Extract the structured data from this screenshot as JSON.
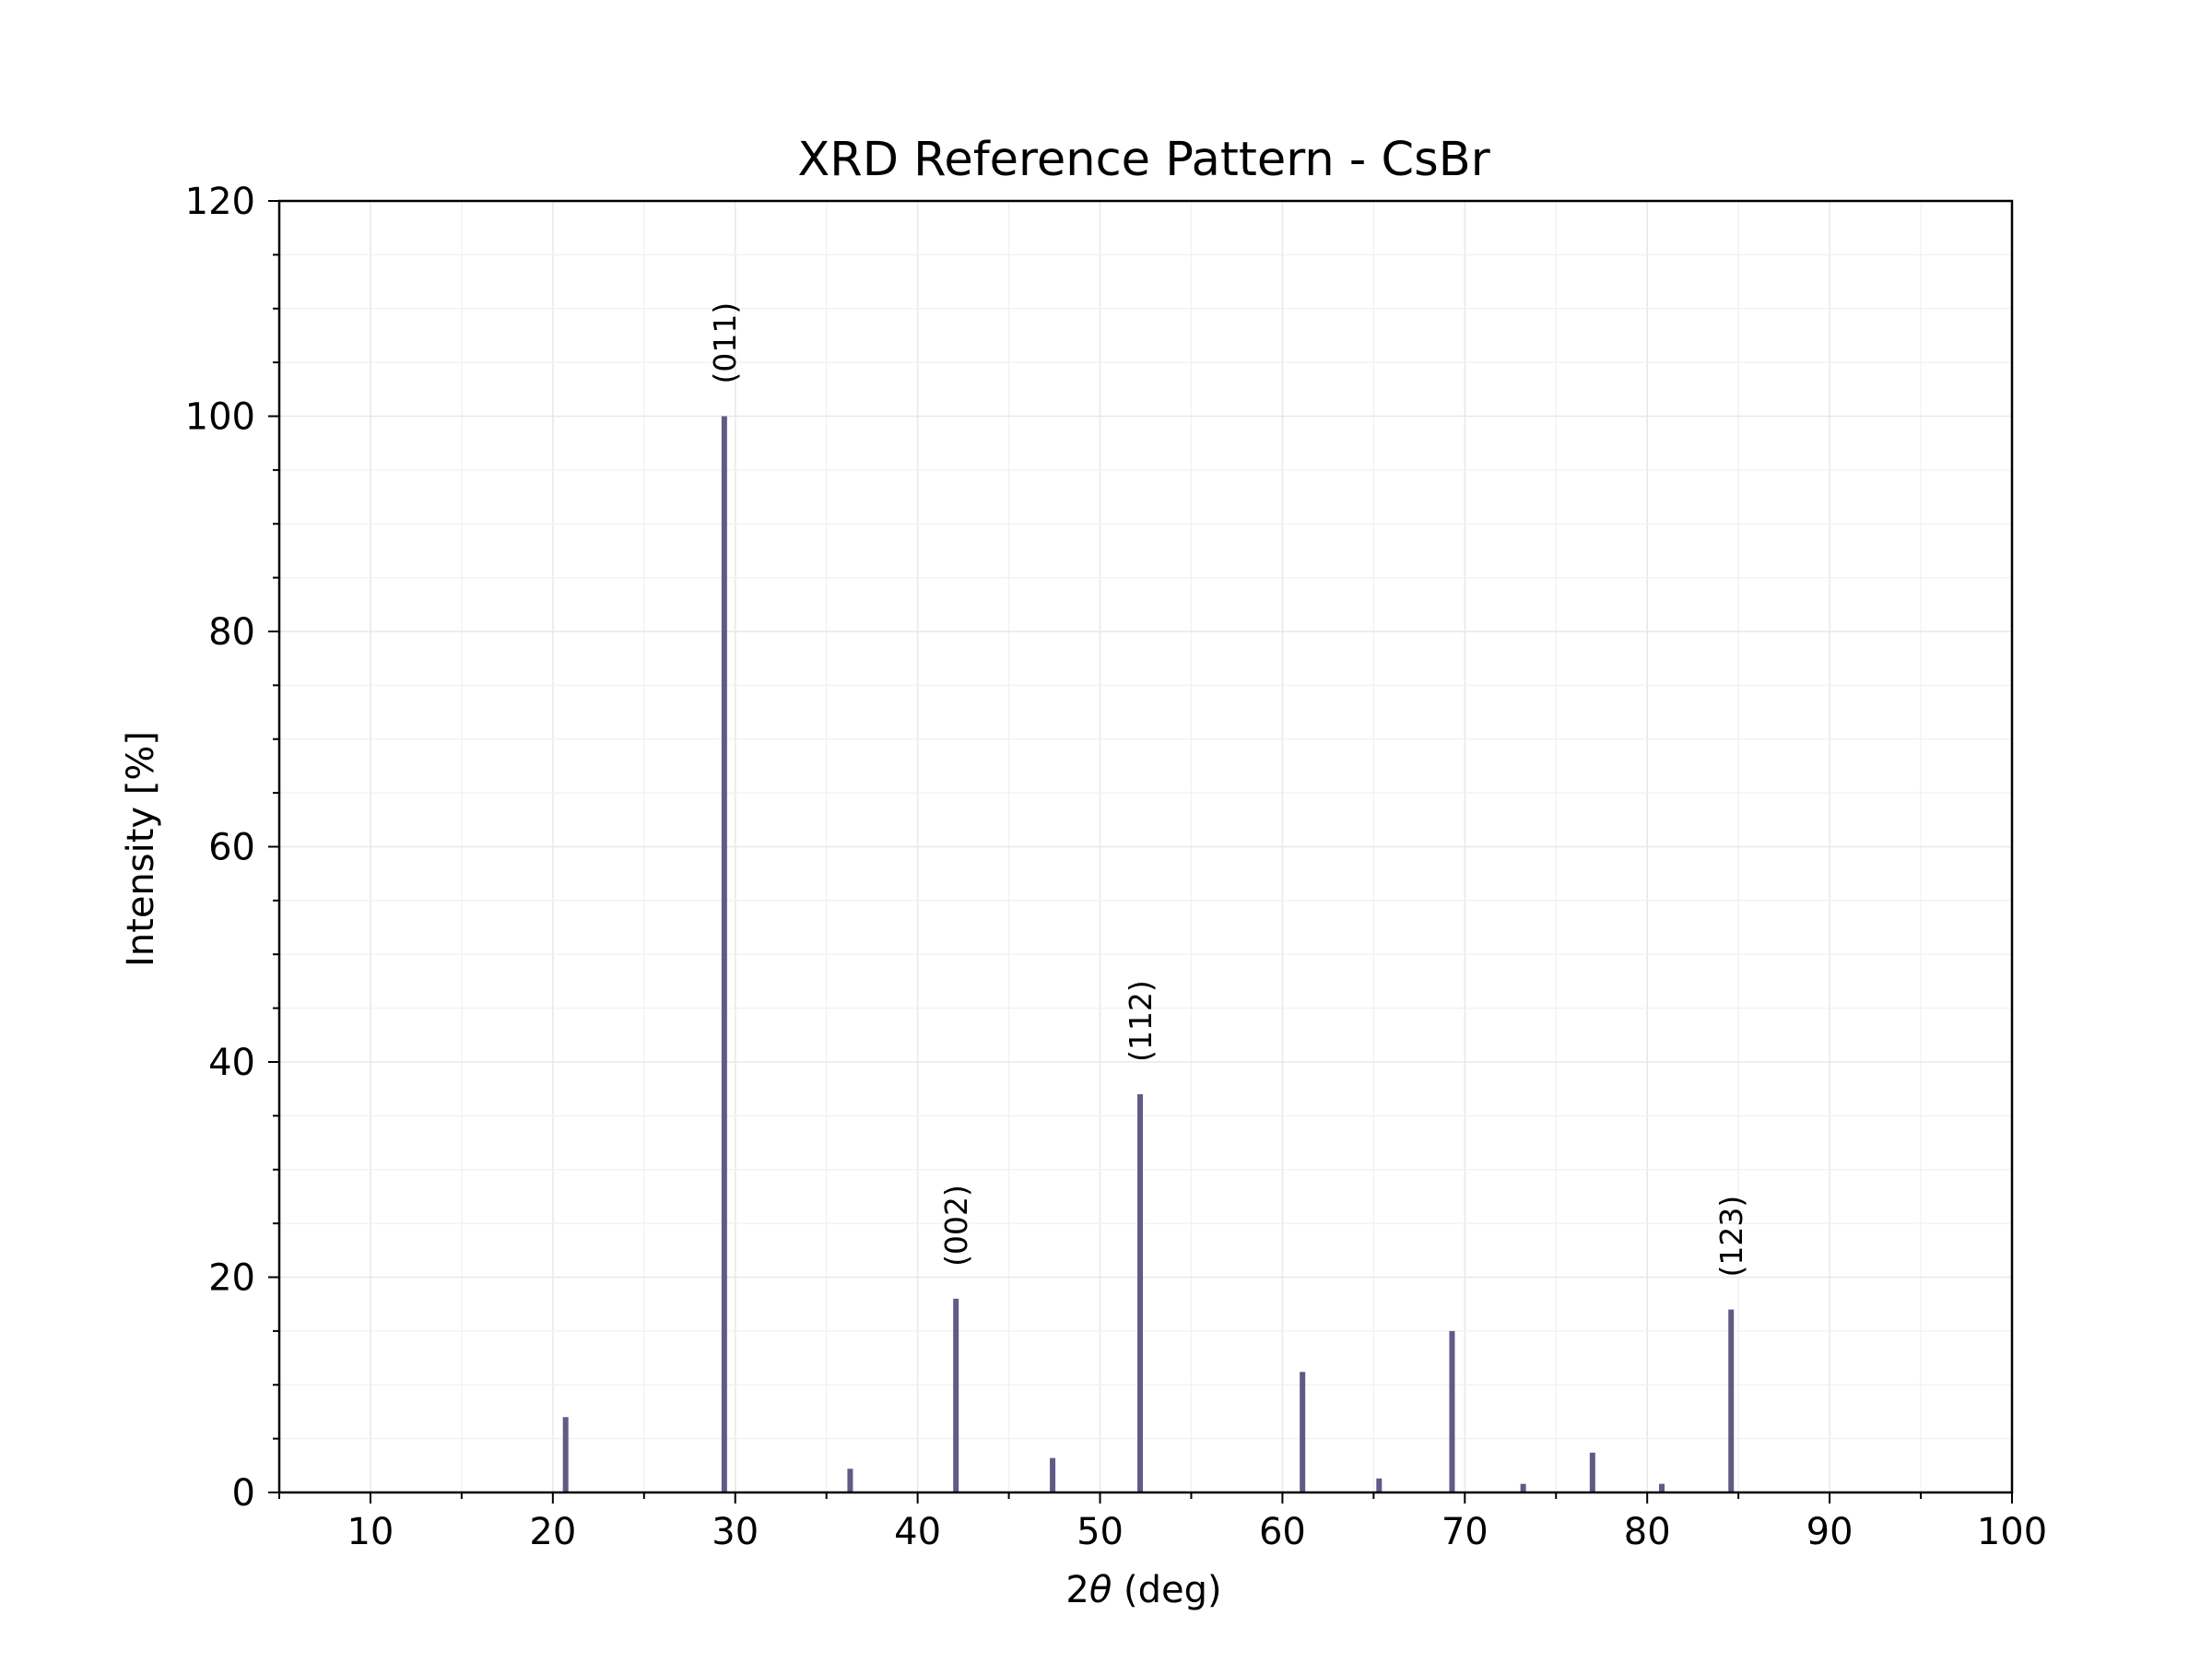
{
  "chart_data": {
    "type": "bar",
    "title": "XRD Reference Pattern - CsBr",
    "xlabel_prefix": "2",
    "xlabel_symbol": "θ",
    "xlabel_suffix": " (deg)",
    "ylabel": "Intensity [%]",
    "xlim": [
      5,
      100
    ],
    "ylim": [
      0,
      120
    ],
    "xticks": [
      10,
      20,
      30,
      40,
      50,
      60,
      70,
      80,
      90,
      100
    ],
    "yticks": [
      0,
      20,
      40,
      60,
      80,
      100,
      120
    ],
    "grid": true,
    "bar_color": "#625a85",
    "peaks": [
      {
        "x": 20.7,
        "y": 7.0,
        "label": ""
      },
      {
        "x": 29.4,
        "y": 100.0,
        "label": "(011)"
      },
      {
        "x": 36.3,
        "y": 2.2,
        "label": ""
      },
      {
        "x": 42.1,
        "y": 18.0,
        "label": "(002)"
      },
      {
        "x": 47.4,
        "y": 3.2,
        "label": ""
      },
      {
        "x": 52.2,
        "y": 37.0,
        "label": "(112)"
      },
      {
        "x": 61.1,
        "y": 11.2,
        "label": ""
      },
      {
        "x": 65.3,
        "y": 1.3,
        "label": ""
      },
      {
        "x": 69.3,
        "y": 15.0,
        "label": ""
      },
      {
        "x": 73.2,
        "y": 0.8,
        "label": ""
      },
      {
        "x": 77.0,
        "y": 3.7,
        "label": ""
      },
      {
        "x": 80.8,
        "y": 0.8,
        "label": ""
      },
      {
        "x": 84.6,
        "y": 17.0,
        "label": "(123)"
      }
    ]
  }
}
